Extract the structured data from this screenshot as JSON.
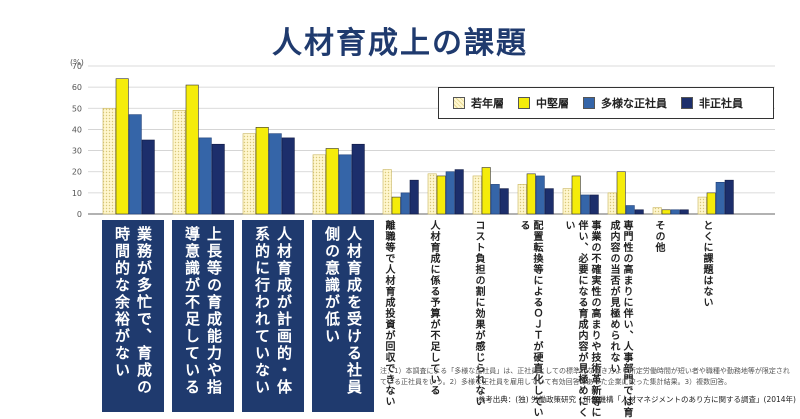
{
  "title": "人材育成上の課題",
  "unit_label": "(%)",
  "legend": [
    {
      "label": "若年層",
      "color": "#fff5c8",
      "pattern": "dots"
    },
    {
      "label": "中堅層",
      "color": "#f5ec0a",
      "pattern": "solid"
    },
    {
      "label": "多様な正社員",
      "color": "#3565a8",
      "pattern": "solid"
    },
    {
      "label": "非正社員",
      "color": "#1c2e6b",
      "pattern": "solid"
    }
  ],
  "highlight_labels": [
    "業務が多忙で、育成の時間的な余裕がない",
    "上長等の育成能力や指導意識が不足している",
    "人材育成が計画的・体系的に行われていない",
    "人材育成を受ける社員側の意識が低い"
  ],
  "small_labels": [
    "離職等で人材育成投資が回収できない",
    "人材育成に係る予算が不足している",
    "コスト負担の割に効果が感じられない",
    "配置転換等によるＯＪＴが硬直化している",
    "事業の不確実性の高まりや技術革新等に伴い、必要になる育成内容が見極めにくい",
    "専門性の高まりに伴い、人事部門では育成内容の当否が見極められない",
    "その他",
    "とくに課題はない"
  ],
  "note": "注：1）本調査による「多様な正社員」は、正社員としての標準的な働き方より所定労働時間が短い者や職種や勤務地等が限定されている正社員をいう。2）多様な正社員を雇用していて有効回答のあった企業に絞った集計結果。3）複数回答。",
  "source": "参考出典：(独) 労働政策研究・研修機構「人材マネジメントのあり方に関する調査」(2014年)",
  "chart_data": {
    "type": "bar",
    "title": "人材育成上の課題",
    "ylabel": "(%)",
    "ylim": [
      0,
      70
    ],
    "yticks": [
      0,
      10,
      20,
      30,
      40,
      50,
      60,
      70
    ],
    "grid": true,
    "legend_position": "top-right",
    "categories": [
      "業務が多忙で、育成の時間的な余裕がない",
      "上長等の育成能力や指導意識が不足している",
      "人材育成が計画的・体系的に行われていない",
      "人材育成を受ける社員側の意識が低い",
      "離職等で人材育成投資が回収できない",
      "人材育成に係る予算が不足している",
      "コスト負担の割に効果が感じられない",
      "配置転換等によるＯＪＴが硬直化している",
      "事業の不確実性の高まりや技術革新等に伴い、必要になる育成内容が見極めにくい",
      "専門性の高まりに伴い、人事部門では育成内容の当否が見極められない",
      "その他",
      "とくに課題はない"
    ],
    "series": [
      {
        "name": "若年層",
        "values": [
          50,
          49,
          38,
          28,
          21,
          19,
          18,
          14,
          12,
          10,
          3,
          8
        ]
      },
      {
        "name": "中堅層",
        "values": [
          64,
          61,
          41,
          31,
          8,
          18,
          22,
          19,
          18,
          20,
          2,
          10
        ]
      },
      {
        "name": "多様な正社員",
        "values": [
          47,
          36,
          38,
          28,
          10,
          20,
          14,
          18,
          9,
          4,
          2,
          15
        ]
      },
      {
        "name": "非正社員",
        "values": [
          35,
          33,
          36,
          33,
          16,
          21,
          12,
          12,
          9,
          2,
          2,
          16
        ]
      }
    ]
  }
}
